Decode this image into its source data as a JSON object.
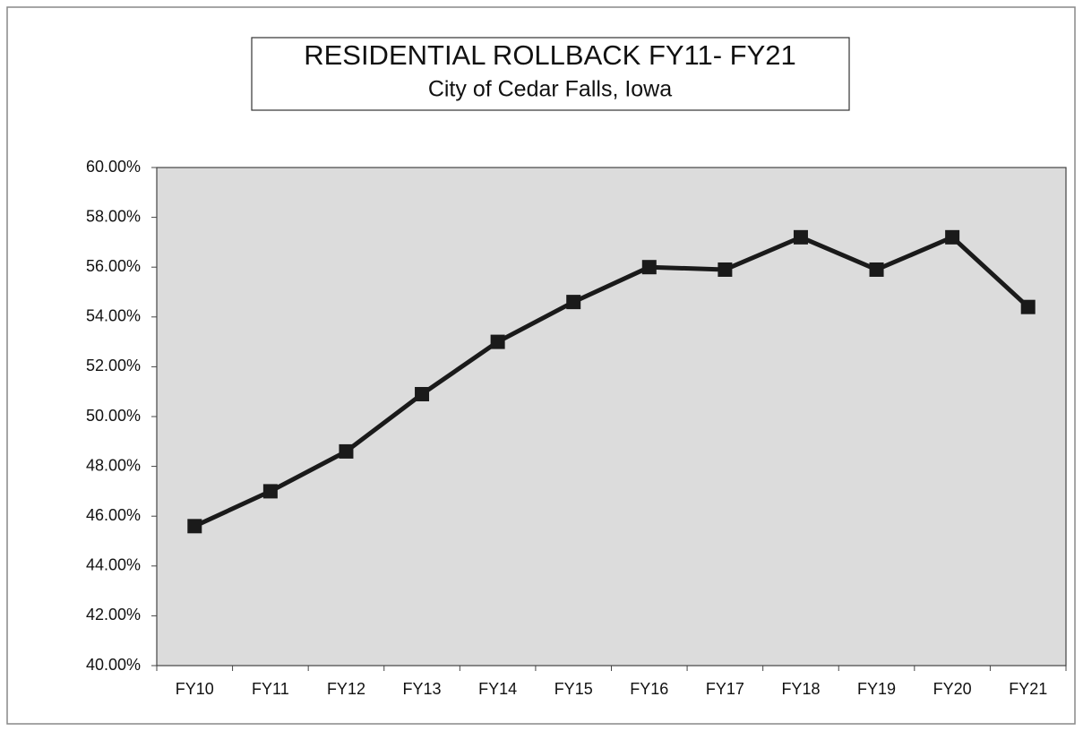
{
  "chart_data": {
    "type": "line",
    "title": "RESIDENTIAL ROLLBACK FY11- FY21",
    "subtitle": "City of Cedar Falls, Iowa",
    "categories": [
      "FY10",
      "FY11",
      "FY12",
      "FY13",
      "FY14",
      "FY15",
      "FY16",
      "FY17",
      "FY18",
      "FY19",
      "FY20",
      "FY21"
    ],
    "values": [
      45.6,
      47.0,
      48.6,
      50.9,
      53.0,
      54.6,
      56.0,
      55.9,
      57.2,
      55.9,
      57.2,
      54.4
    ],
    "color": "#1a1a1a",
    "ylim": [
      40,
      60
    ],
    "yticks": [
      {
        "value": 40,
        "label": "40.00%"
      },
      {
        "value": 42,
        "label": "42.00%"
      },
      {
        "value": 44,
        "label": "44.00%"
      },
      {
        "value": 46,
        "label": "46.00%"
      },
      {
        "value": 48,
        "label": "48.00%"
      },
      {
        "value": 50,
        "label": "50.00%"
      },
      {
        "value": 52,
        "label": "52.00%"
      },
      {
        "value": 54,
        "label": "54.00%"
      },
      {
        "value": 56,
        "label": "56.00%"
      },
      {
        "value": 58,
        "label": "58.00%"
      },
      {
        "value": 60,
        "label": "60.00%"
      }
    ]
  }
}
